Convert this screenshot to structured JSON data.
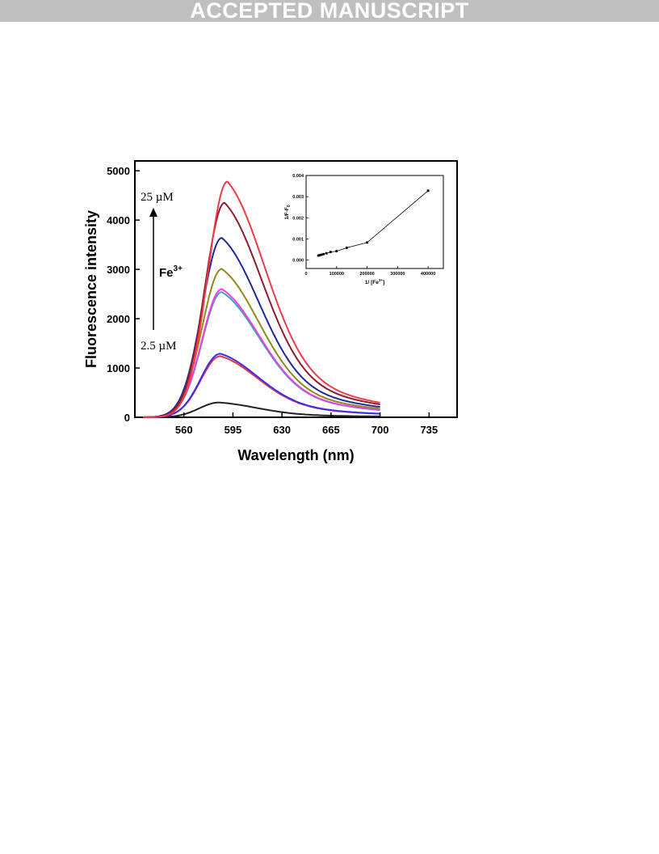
{
  "banner": {
    "text": "ACCEPTED MANUSCRIPT"
  },
  "chart_data": [
    {
      "type": "line",
      "xlabel": "Wavelength (nm)",
      "ylabel": "Fluorescence intensity",
      "xlim": [
        525,
        755
      ],
      "ylim": [
        0,
        5200
      ],
      "xticks": [
        560,
        595,
        630,
        665,
        700,
        735
      ],
      "yticks": [
        0,
        1000,
        2000,
        3000,
        4000,
        5000
      ],
      "annotations": {
        "top_conc": "25 µM",
        "bottom_conc": "2.5 µM",
        "ion_base": "Fe",
        "ion_sup": "3+"
      },
      "series": [
        {
          "color": "#222222",
          "peak_x": 585,
          "peak_y": 300,
          "tail_y": 18
        },
        {
          "color": "#e8343c",
          "peak_x": 586,
          "peak_y": 1240,
          "tail_y": 60
        },
        {
          "color": "#3a2ff0",
          "peak_x": 586,
          "peak_y": 1290,
          "tail_y": 70
        },
        {
          "color": "#3aa6b8",
          "peak_x": 587,
          "peak_y": 2540,
          "tail_y": 110
        },
        {
          "color": "#ee3fe6",
          "peak_x": 587,
          "peak_y": 2600,
          "tail_y": 120
        },
        {
          "color": "#8f8a1a",
          "peak_x": 587,
          "peak_y": 3010,
          "tail_y": 140
        },
        {
          "color": "#1d2a9c",
          "peak_x": 587,
          "peak_y": 3640,
          "tail_y": 170
        },
        {
          "color": "#8b1e2a",
          "peak_x": 589,
          "peak_y": 4350,
          "tail_y": 210
        },
        {
          "color": "#f03a4a",
          "peak_x": 591,
          "peak_y": 4780,
          "tail_y": 250
        }
      ]
    },
    {
      "type": "line",
      "xlabel_base": "1/ [Fe",
      "xlabel_sup": "3+",
      "xlabel_end": "]",
      "ylabel_base": "1/F-F",
      "ylabel_sub": "0",
      "xlim": [
        0,
        450000
      ],
      "ylim": [
        -0.0004,
        0.004
      ],
      "xticks": [
        0,
        100000,
        200000,
        300000,
        400000
      ],
      "yticks": [
        0.0,
        0.001,
        0.002,
        0.003,
        0.004
      ],
      "xtick_labels": [
        "0",
        "100000",
        "200000",
        "300000",
        "400000"
      ],
      "ytick_labels": [
        "0.000",
        "0.001",
        "0.002",
        "0.003",
        "0.004"
      ],
      "x": [
        40000,
        44444,
        50000,
        57143,
        66667,
        80000,
        100000,
        133333,
        200000,
        400000
      ],
      "y": [
        0.00021,
        0.00023,
        0.00025,
        0.00028,
        0.00032,
        0.00038,
        0.00042,
        0.00058,
        0.00083,
        0.00328
      ]
    }
  ]
}
